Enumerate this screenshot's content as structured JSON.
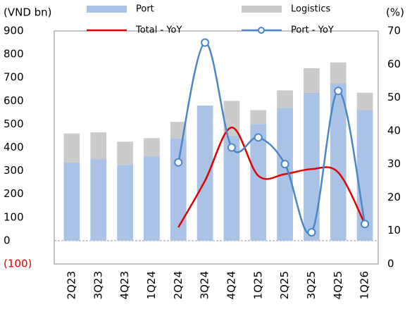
{
  "chart_data": {
    "type": "bar",
    "stacked": true,
    "y_label": "(VND bn)",
    "y2_label": "(%)",
    "categories": [
      "2Q23",
      "3Q23",
      "4Q23",
      "1Q24",
      "2Q24",
      "3Q24",
      "4Q24",
      "1Q25",
      "2Q25",
      "3Q25",
      "4Q25",
      "1Q26"
    ],
    "series": [
      {
        "name": "Port",
        "type": "bar",
        "color": "#aac2e6",
        "values": [
          335,
          350,
          325,
          362,
          440,
          580,
          450,
          500,
          570,
          635,
          675,
          560
        ]
      },
      {
        "name": "Logistics",
        "type": "bar",
        "color": "#cbcbcb",
        "values": [
          125,
          115,
          100,
          78,
          70,
          0,
          150,
          60,
          75,
          105,
          90,
          75
        ]
      },
      {
        "name": "Total - YoY",
        "type": "line",
        "axis": "y2",
        "color": "#e00000",
        "smooth": true,
        "values": [
          null,
          null,
          null,
          null,
          11,
          25,
          41,
          26.5,
          27,
          28.5,
          27.5,
          12
        ]
      },
      {
        "name": "Port - YoY",
        "type": "line",
        "axis": "y2",
        "color": "#4a86c8",
        "smooth": true,
        "markers": true,
        "values": [
          null,
          null,
          null,
          null,
          30.5,
          66.5,
          35,
          38,
          30,
          9.5,
          52,
          12
        ]
      }
    ],
    "ylim": [
      -100,
      900
    ],
    "yticks": [
      {
        "value": -100,
        "label": "(100)"
      },
      0,
      100,
      200,
      300,
      400,
      500,
      600,
      700,
      800,
      900
    ],
    "negative_tick_color": "#e00000",
    "y2lim": [
      0,
      70
    ],
    "y2ticks": [
      0,
      10,
      20,
      30,
      40,
      50,
      60,
      70
    ],
    "grid": false
  }
}
